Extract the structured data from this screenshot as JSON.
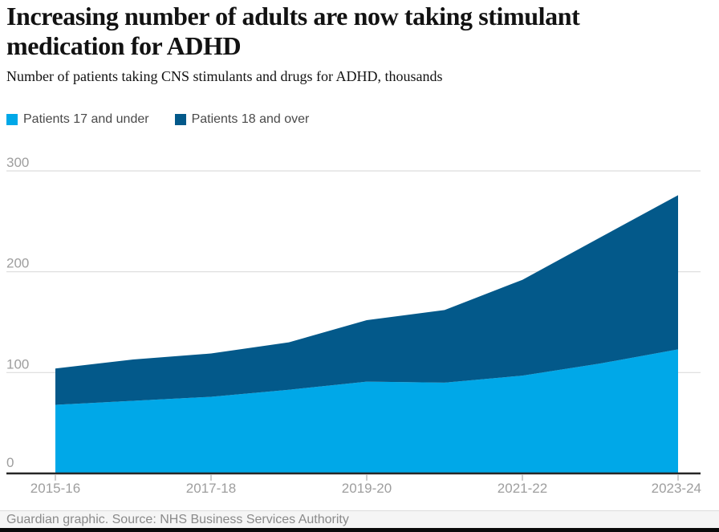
{
  "header": {
    "title_line1": "Increasing number of adults are now taking stimulant",
    "title_line2": "medication for ADHD",
    "subtitle": "Number of patients taking CNS stimulants and drugs for ADHD, thousands"
  },
  "legend": {
    "items": [
      {
        "label": "Patients 17 and under",
        "color": "#00a8e8"
      },
      {
        "label": "Patients 18 and over",
        "color": "#03598a"
      }
    ]
  },
  "chart_data": {
    "type": "area",
    "stacked": true,
    "title": "Increasing number of adults are now taking stimulant medication for ADHD",
    "subtitle": "Number of patients taking CNS stimulants and drugs for ADHD, thousands",
    "categories": [
      "2015-16",
      "2016-17",
      "2017-18",
      "2018-19",
      "2019-20",
      "2020-21",
      "2021-22",
      "2022-23",
      "2023-24"
    ],
    "series": [
      {
        "name": "Patients 17 and under",
        "color": "#00a8e8",
        "values": [
          68,
          72,
          76,
          83,
          91,
          90,
          97,
          109,
          123
        ]
      },
      {
        "name": "Patients 18 and over",
        "color": "#03598a",
        "values": [
          36,
          41,
          43,
          47,
          61,
          72,
          95,
          125,
          153
        ]
      }
    ],
    "totals": [
      104,
      113,
      119,
      130,
      152,
      162,
      192,
      234,
      276
    ],
    "xlabel": "",
    "ylabel": "",
    "ylim": [
      0,
      300
    ],
    "y_ticks": [
      0,
      100,
      200,
      300
    ],
    "x_tick_labels": [
      "2015-16",
      "2017-18",
      "2019-20",
      "2021-22",
      "2023-24"
    ],
    "grid": "horizontal",
    "legend_position": "top",
    "colors": {
      "gridline": "#dcdcdc",
      "axis_line": "#262626",
      "tick_mark": "#bdbdbd",
      "tick_label": "#9e9e9e"
    }
  },
  "footer": {
    "text": "Guardian graphic. Source: NHS Business Services Authority"
  }
}
